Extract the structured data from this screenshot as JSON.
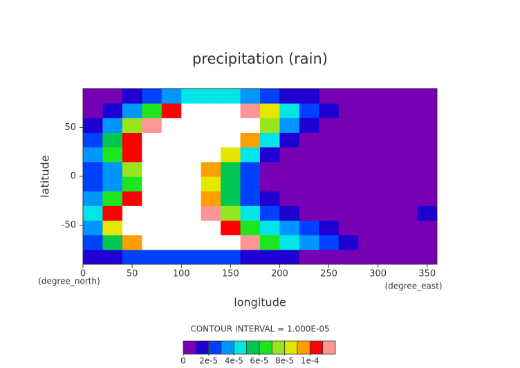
{
  "chart_data": {
    "type": "contour",
    "title": "precipitation (rain)",
    "xlabel": "longitude",
    "ylabel": "latitude",
    "xunit": "(degree_east)",
    "yunit": "(degree_north)",
    "contour_interval_label": "CONTOUR INTERVAL = 1.000E-05",
    "xlim": [
      0,
      360
    ],
    "ylim": [
      -90,
      90
    ],
    "xticks": [
      0,
      50,
      100,
      150,
      200,
      250,
      300,
      350
    ],
    "yticks": [
      -50,
      0,
      50
    ],
    "x": [
      10,
      30,
      50,
      70,
      90,
      110,
      130,
      150,
      170,
      190,
      210,
      230,
      250,
      270,
      290,
      310,
      330,
      350
    ],
    "y": [
      -82.5,
      -67.5,
      -52.5,
      -37.5,
      -22.5,
      -7.5,
      7.5,
      22.5,
      37.5,
      52.5,
      67.5,
      82.5
    ],
    "z": [
      [
        1e-05,
        1.5e-05,
        2e-05,
        2e-05,
        2e-05,
        2e-05,
        2e-05,
        2e-05,
        1.5e-05,
        1.5e-05,
        1e-05,
        5e-06,
        5e-06,
        5e-06,
        5e-06,
        5e-06,
        5e-06,
        5e-06
      ],
      [
        2e-05,
        5e-05,
        9e-05,
        0.00013,
        0.00013,
        0.00013,
        0.00013,
        0.00013,
        0.00011,
        6e-05,
        4e-05,
        3e-05,
        2e-05,
        1e-05,
        5e-06,
        5e-06,
        5e-06,
        5e-06
      ],
      [
        3e-05,
        8e-05,
        0.00013,
        0.00013,
        0.00013,
        0.00013,
        0.00013,
        0.0001,
        6e-05,
        4e-05,
        3e-05,
        2e-05,
        1e-05,
        5e-06,
        5e-06,
        5e-06,
        5e-06,
        5e-06
      ],
      [
        4e-05,
        0.0001,
        0.00013,
        0.00013,
        0.00013,
        0.00013,
        0.00011,
        7e-05,
        4e-05,
        2e-05,
        1e-05,
        5e-06,
        5e-06,
        5e-06,
        5e-06,
        5e-06,
        5e-06,
        1.5e-05
      ],
      [
        3e-05,
        6e-05,
        0.0001,
        0.00013,
        0.00013,
        0.00013,
        9e-05,
        5e-05,
        2.5e-05,
        1e-05,
        5e-06,
        5e-06,
        5e-06,
        5e-06,
        5e-06,
        5e-06,
        5e-06,
        5e-06
      ],
      [
        2e-05,
        3e-05,
        6e-05,
        0.00013,
        0.00013,
        0.00013,
        8e-05,
        5e-05,
        2e-05,
        5e-06,
        5e-06,
        5e-06,
        5e-06,
        5e-06,
        5e-06,
        5e-06,
        5e-06,
        5e-06
      ],
      [
        2e-05,
        3e-05,
        7e-05,
        0.00013,
        0.00013,
        0.00013,
        9e-05,
        5e-05,
        2e-05,
        5e-06,
        5e-06,
        5e-06,
        5e-06,
        5e-06,
        5e-06,
        5e-06,
        5e-06,
        5e-06
      ],
      [
        3e-05,
        6e-05,
        0.0001,
        0.00013,
        0.00013,
        0.00013,
        0.00013,
        8e-05,
        4e-05,
        1.5e-05,
        5e-06,
        5e-06,
        5e-06,
        5e-06,
        5e-06,
        5e-06,
        5e-06,
        5e-06
      ],
      [
        2e-05,
        5e-05,
        0.0001,
        0.00013,
        0.00013,
        0.00013,
        0.00013,
        0.00013,
        9e-05,
        4e-05,
        1.5e-05,
        5e-06,
        5e-06,
        5e-06,
        5e-06,
        5e-06,
        5e-06,
        5e-06
      ],
      [
        1e-05,
        3e-05,
        7e-05,
        0.00011,
        0.00013,
        0.00013,
        0.00013,
        0.00013,
        0.00013,
        7e-05,
        3e-05,
        1e-05,
        5e-06,
        5e-06,
        5e-06,
        5e-06,
        5e-06,
        5e-06
      ],
      [
        5e-06,
        1.5e-05,
        3e-05,
        6e-05,
        0.0001,
        0.00013,
        0.00013,
        0.00013,
        0.00011,
        8e-05,
        4e-05,
        2e-05,
        1e-05,
        5e-06,
        5e-06,
        5e-06,
        5e-06,
        5e-06
      ],
      [
        5e-06,
        5e-06,
        1e-05,
        2e-05,
        3e-05,
        4e-05,
        4e-05,
        4e-05,
        3e-05,
        2e-05,
        1.5e-05,
        1e-05,
        5e-06,
        5e-06,
        5e-06,
        5e-06,
        5e-06,
        5e-06
      ]
    ],
    "levels": [
      0,
      1e-05,
      2e-05,
      3e-05,
      4e-05,
      5e-05,
      6e-05,
      7e-05,
      8e-05,
      9e-05,
      0.0001,
      0.00011,
      0.00012
    ],
    "colors": [
      "#7700b5",
      "#1e00d2",
      "#0040ff",
      "#0096ff",
      "#00e6e6",
      "#00c850",
      "#1ee61e",
      "#96e61e",
      "#e6e600",
      "#ffa000",
      "#ff0000",
      "#ff9696"
    ],
    "colorbar_ticks": [
      0,
      {
        "value": 2e-05,
        "label": "2e-5"
      },
      {
        "value": 4e-05,
        "label": "4e-5"
      },
      {
        "value": 6e-05,
        "label": "6e-5"
      },
      {
        "value": 8e-05,
        "label": "8e-5"
      },
      {
        "value": 0.0001,
        "label": "1e-4"
      }
    ]
  }
}
